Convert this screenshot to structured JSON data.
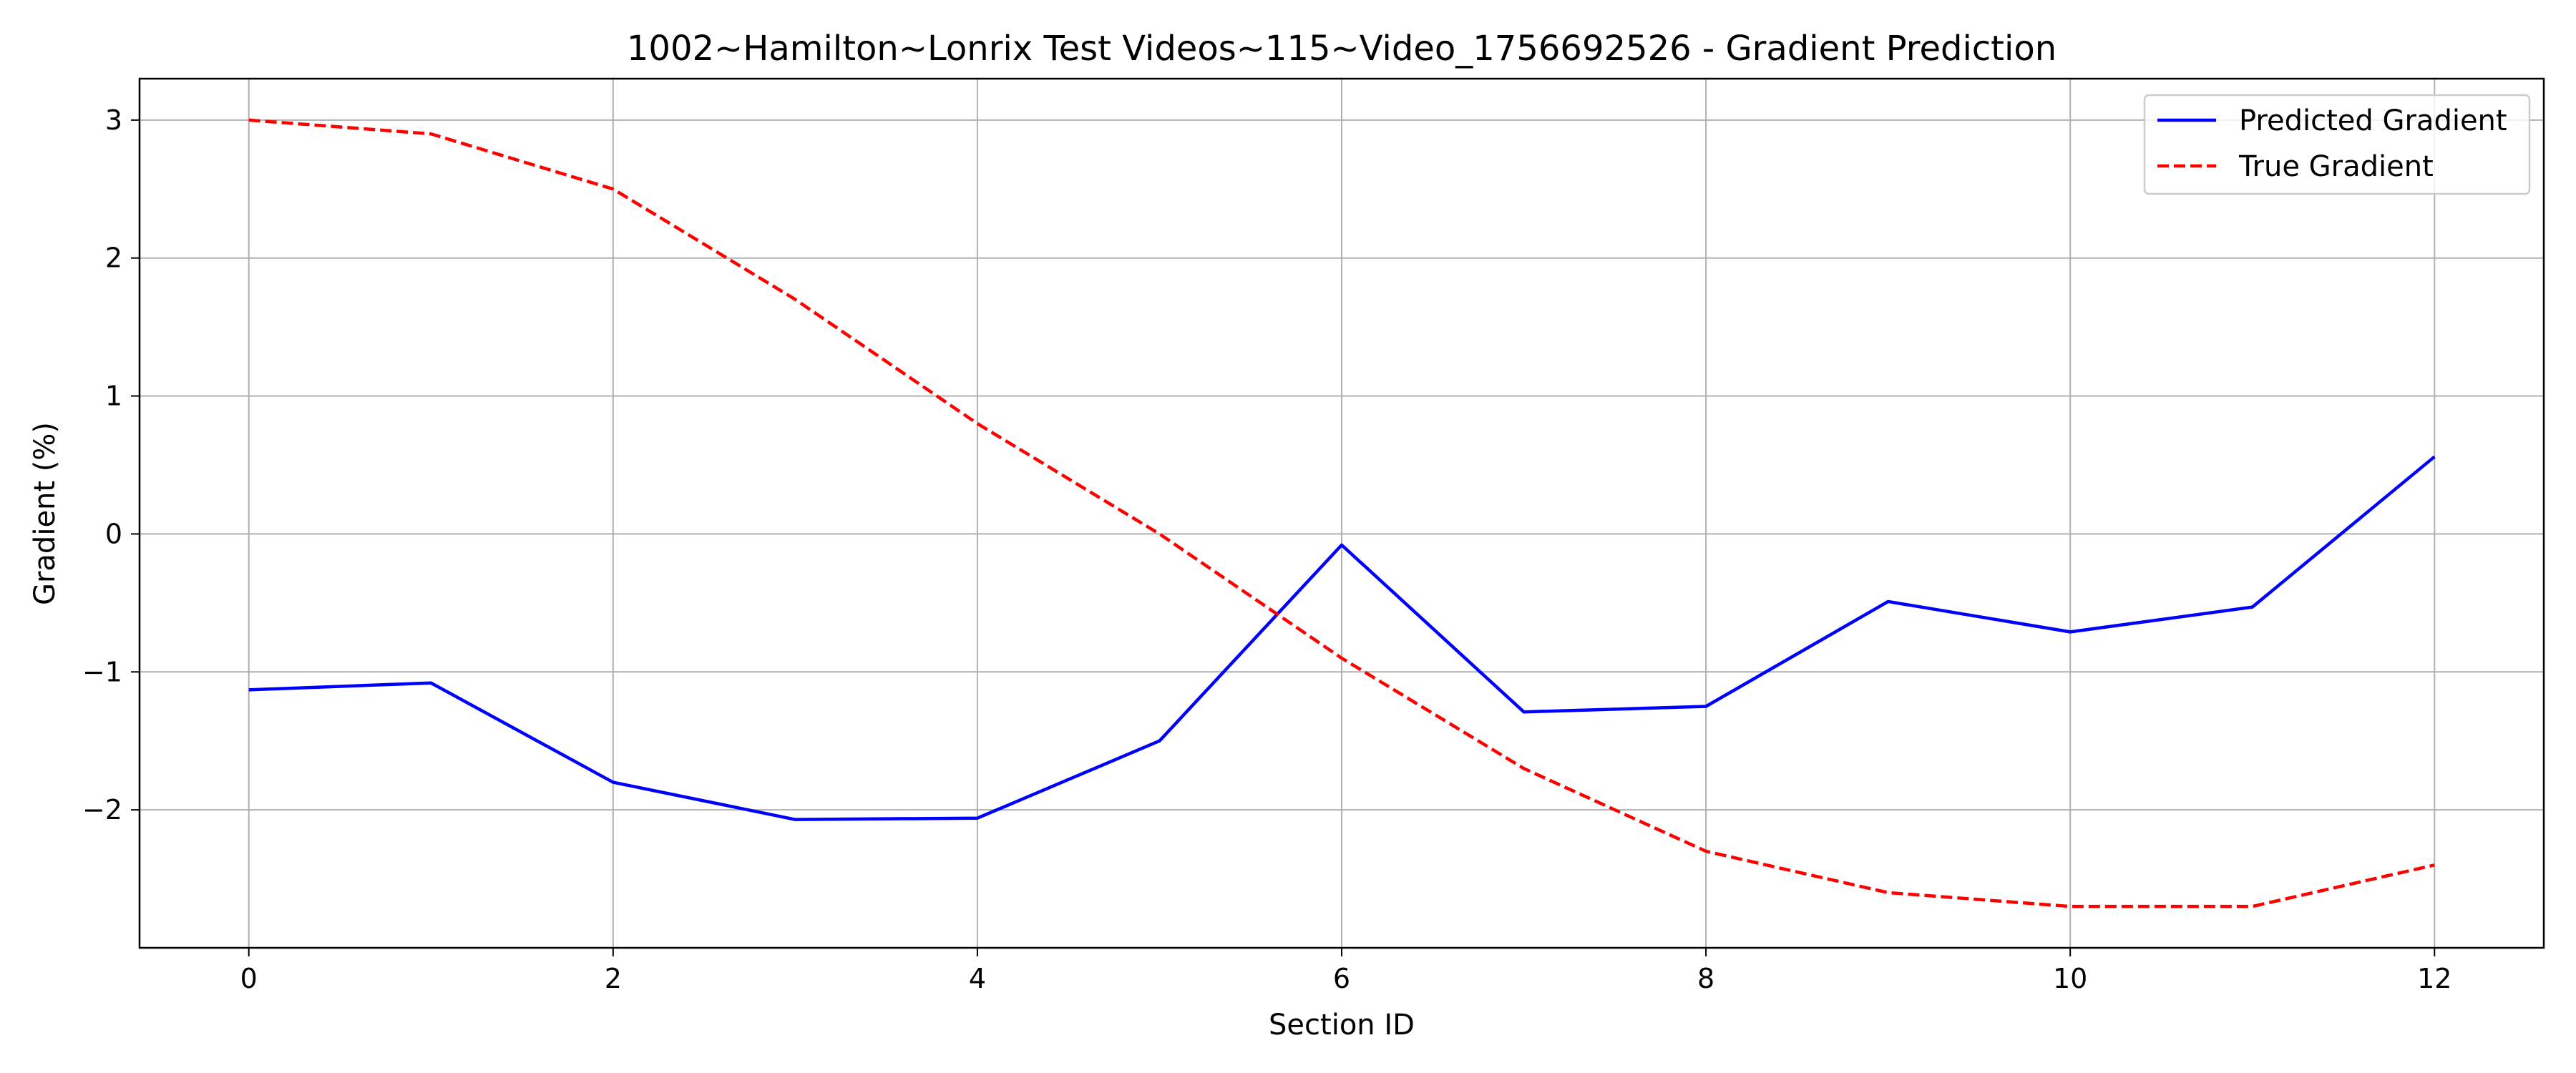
{
  "chart_data": {
    "type": "line",
    "title": "1002~Hamilton~Lonrix Test Videos~115~Video_1756692526 - Gradient Prediction",
    "xlabel": "Section ID",
    "ylabel": "Gradient (%)",
    "x": [
      0,
      1,
      2,
      3,
      4,
      5,
      6,
      7,
      8,
      9,
      10,
      11,
      12
    ],
    "xlim": [
      -0.6,
      12.6
    ],
    "ylim": [
      -3.0,
      3.3
    ],
    "xticks": [
      0,
      2,
      4,
      6,
      8,
      10,
      12
    ],
    "yticks": [
      3,
      2,
      1,
      0,
      -1,
      -2
    ],
    "ytick_labels": [
      "3",
      "2",
      "1",
      "0",
      "−1",
      "−2"
    ],
    "grid": true,
    "legend_position": "top-right",
    "series": [
      {
        "name": "Predicted Gradient",
        "color": "#0000ff",
        "style": "solid",
        "values": [
          -1.13,
          -1.08,
          -1.8,
          -2.07,
          -2.06,
          -1.5,
          -0.08,
          -1.29,
          -1.25,
          -0.49,
          -0.71,
          -0.53,
          0.56
        ]
      },
      {
        "name": "True Gradient",
        "color": "#ff0000",
        "style": "dashed",
        "values": [
          3.0,
          2.9,
          2.5,
          1.7,
          0.8,
          0.0,
          -0.9,
          -1.7,
          -2.3,
          -2.6,
          -2.7,
          -2.7,
          -2.4
        ]
      }
    ]
  }
}
